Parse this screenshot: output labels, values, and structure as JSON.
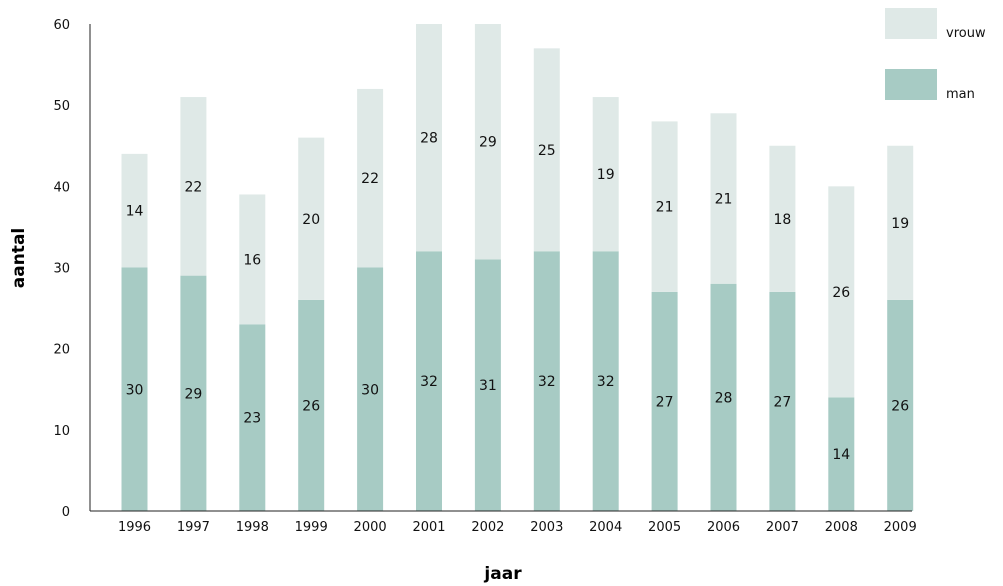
{
  "chart_data": {
    "type": "bar",
    "stacked": true,
    "categories": [
      "1996",
      "1997",
      "1998",
      "1999",
      "2000",
      "2001",
      "2002",
      "2003",
      "2004",
      "2005",
      "2006",
      "2007",
      "2008",
      "2009"
    ],
    "series": [
      {
        "name": "man",
        "color": "#a7cbc4",
        "values": [
          30,
          29,
          23,
          26,
          30,
          32,
          31,
          32,
          32,
          27,
          28,
          27,
          14,
          26
        ]
      },
      {
        "name": "vrouw",
        "color": "#dfe9e7",
        "values": [
          14,
          22,
          16,
          20,
          22,
          28,
          29,
          25,
          19,
          21,
          21,
          18,
          26,
          19
        ]
      }
    ],
    "xlabel": "jaar",
    "ylabel": "aantal",
    "ylim": [
      0,
      60
    ],
    "yticks": [
      0,
      10,
      20,
      30,
      40,
      50,
      60
    ],
    "legend_position": "top-right",
    "grid": false
  }
}
